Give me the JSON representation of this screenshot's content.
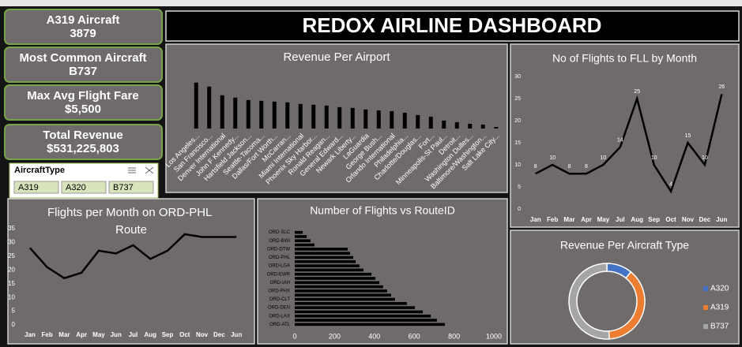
{
  "header": {
    "title": "REDOX AIRLINE DASHBOARD"
  },
  "cards": [
    {
      "label": "A319 Aircraft",
      "value": "3879"
    },
    {
      "label": "Most Common Aircraft",
      "value": "B737"
    },
    {
      "label": "Max Avg Flight Fare",
      "value": "$5,500"
    },
    {
      "label": "Total Revenue",
      "value": "$531,225,803"
    }
  ],
  "slicer": {
    "title": "AircraftType",
    "items": [
      "A319",
      "A320",
      "B737"
    ]
  },
  "chart_data": [
    {
      "type": "bar",
      "title": "Revenue Per Airport",
      "color": "#000000",
      "categories": [
        "Los Angeles...",
        "San Francisco...",
        "Denver International",
        "John F Kennedy...",
        "Hartsfield Jackson...",
        "Seattle-Tacoma...",
        "Dallas/Fort Worth...",
        "McCarran...",
        "Miami International",
        "Phoenix Sky Harbor...",
        "Ronald Reagan...",
        "General Edward...",
        "Newark Liberty...",
        "LaGuardia",
        "George Bush...",
        "Orlando International",
        "Philadelphia...",
        "Charlotte/Douglas...",
        "Fort...",
        "Minneapolis-St Paul...",
        "Detroit...",
        "Washington Dulles...",
        "Baltimore/Washington...",
        "Salt Lake City..."
      ],
      "values": [
        49000000,
        44800000,
        35500000,
        33000000,
        30400000,
        29600000,
        28700000,
        27900000,
        26200000,
        25400000,
        24500000,
        22800000,
        22000000,
        20300000,
        19400000,
        18600000,
        16900000,
        14400000,
        12700000,
        8500000,
        6800000,
        5100000,
        4200000,
        1700000
      ],
      "ylim": [
        0,
        53000000
      ]
    },
    {
      "type": "line",
      "title": "No of Flights to FLL by Month",
      "color": "#000000",
      "data_labels": true,
      "categories": [
        "Jan",
        "Feb",
        "Mar",
        "Apr",
        "May",
        "Jul",
        "Aug",
        "Sep",
        "Oct",
        "Nov",
        "Dec",
        "Jun"
      ],
      "values": [
        8,
        10,
        8,
        8,
        10,
        14,
        25,
        10,
        4,
        15,
        10,
        26
      ],
      "ylim": [
        0,
        30
      ],
      "yticks": [
        0,
        5,
        10,
        15,
        20,
        25,
        30
      ]
    },
    {
      "type": "line",
      "title": "Flights per Month on ORD-PHL Route",
      "color": "#000000",
      "data_labels": false,
      "categories": [
        "Jan",
        "Feb",
        "Mar",
        "Apr",
        "May",
        "Jun",
        "Jul",
        "Aug",
        "Sep",
        "Oct",
        "Nov",
        "Dec",
        "Jun"
      ],
      "values": [
        28,
        21,
        17,
        19,
        27,
        26,
        29,
        24,
        27,
        33,
        32,
        32,
        32
      ],
      "ylim": [
        0,
        35
      ],
      "yticks": [
        0,
        5,
        10,
        15,
        20,
        25,
        30,
        35
      ]
    },
    {
      "type": "hbar",
      "title": "Number of Flights vs RouteID",
      "color": "#000000",
      "categories": [
        "ORD-ATL",
        null,
        "ORD-LAX",
        null,
        "ORD-DEN",
        null,
        "ORD-CLT",
        null,
        "ORD-PHX",
        null,
        "ORD-IAH",
        null,
        "ORD-EWR",
        null,
        "ORD-LGA",
        null,
        "ORD-PHL",
        null,
        "ORD-DTW",
        null,
        "ORD-BWI",
        null,
        "ORD-SLC"
      ],
      "values": [
        754,
        714,
        683,
        643,
        603,
        563,
        504,
        484,
        464,
        444,
        425,
        405,
        385,
        345,
        325,
        306,
        294,
        278,
        266,
        99,
        79,
        60,
        40
      ],
      "xlim": [
        0,
        1000
      ],
      "xticks": [
        0,
        200,
        400,
        600,
        800,
        1000
      ]
    },
    {
      "type": "pie",
      "title": "Revenue Per Aircraft Type",
      "donut": true,
      "legend": "right",
      "categories": [
        "A320",
        "A319",
        "B737"
      ],
      "values": [
        58000000,
        202000000,
        271000000
      ],
      "colors": [
        "#4472c4",
        "#ed7d31",
        "#a5a5a5"
      ]
    }
  ]
}
